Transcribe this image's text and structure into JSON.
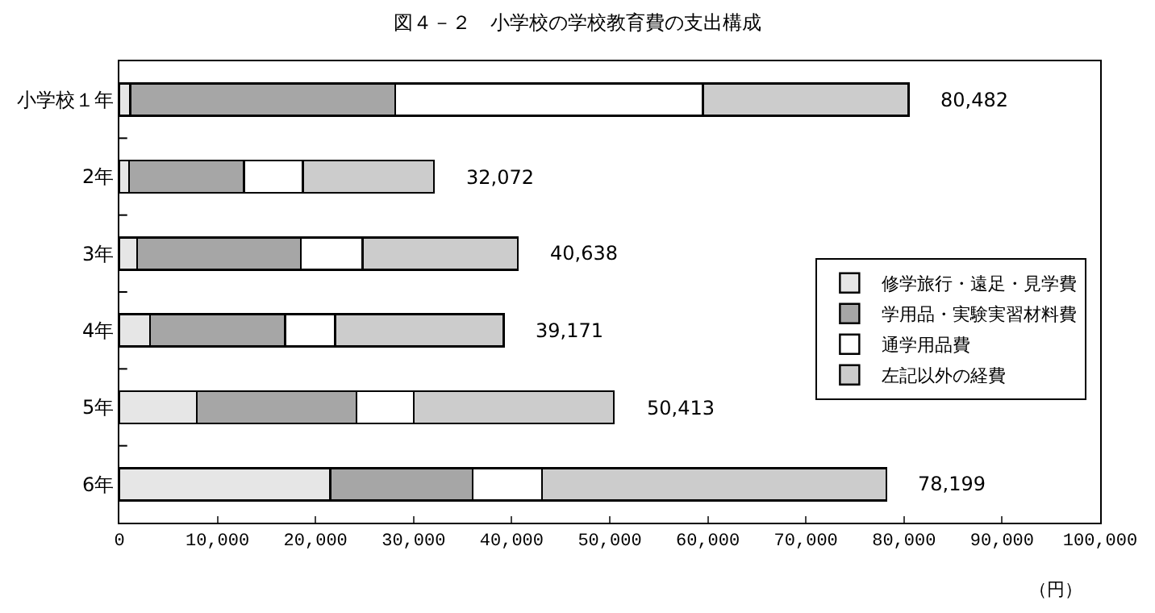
{
  "chart_data": {
    "type": "bar",
    "title": "図４－２　小学校の学校教育費の支出構成",
    "xlabel": "（円）",
    "orientation": "horizontal",
    "stacked": true,
    "categories": [
      "小学校１年",
      "2年",
      "3年",
      "4年",
      "5年",
      "6年"
    ],
    "series": [
      {
        "name": "修学旅行・遠足・見学費",
        "color": "#e6e6e6",
        "values": [
          1100,
          1000,
          1800,
          3100,
          7900,
          21500
        ]
      },
      {
        "name": "学用品・実験実習材料費",
        "color": "#a6a6a6",
        "values": [
          27000,
          11700,
          16700,
          13800,
          16300,
          14500
        ]
      },
      {
        "name": "通学用品費",
        "color": "#ffffff",
        "values": [
          31400,
          6000,
          6300,
          5100,
          5800,
          7100
        ]
      },
      {
        "name": "左記以外の経費",
        "color": "#cccccc",
        "values": [
          20982,
          13372,
          15838,
          17171,
          20413,
          35099
        ]
      }
    ],
    "totals": [
      "80,482",
      "32,072",
      "40,638",
      "39,171",
      "50,413",
      "78,199"
    ],
    "xlim": [
      0,
      100000
    ],
    "xticks": [
      {
        "value": 0,
        "label": "0"
      },
      {
        "value": 10000,
        "label": "10,000"
      },
      {
        "value": 20000,
        "label": "20,000"
      },
      {
        "value": 30000,
        "label": "30,000"
      },
      {
        "value": 40000,
        "label": "40,000"
      },
      {
        "value": 50000,
        "label": "50,000"
      },
      {
        "value": 60000,
        "label": "60,000"
      },
      {
        "value": 70000,
        "label": "70,000"
      },
      {
        "value": 80000,
        "label": "80,000"
      },
      {
        "value": 90000,
        "label": "90,000"
      },
      {
        "value": 100000,
        "label": "100,000"
      }
    ],
    "grid": false,
    "legend": "right"
  }
}
